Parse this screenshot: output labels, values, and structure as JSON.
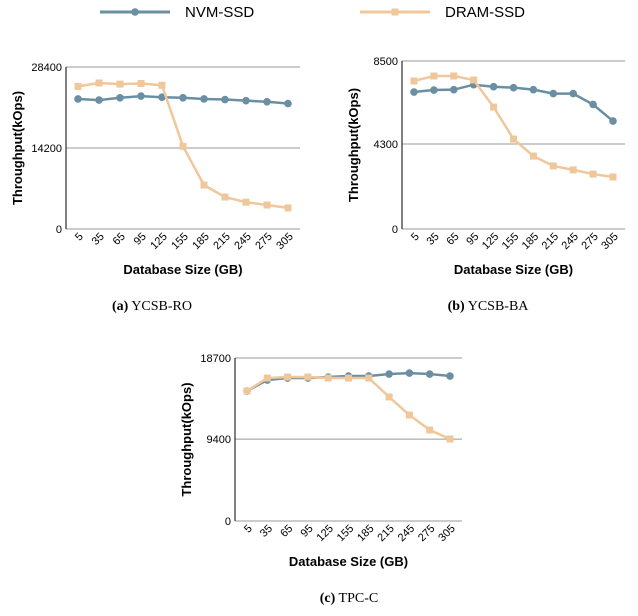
{
  "chart_data": [
    {
      "type": "line",
      "caption_label": "(a)",
      "caption": "YCSB-RO",
      "xlabel": "Database Size (GB)",
      "ylabel": "Throughput(kOps)",
      "categories": [
        "5",
        "35",
        "65",
        "95",
        "125",
        "155",
        "185",
        "215",
        "245",
        "275",
        "305"
      ],
      "ylim": [
        0,
        28400
      ],
      "yticks": [
        0,
        14200,
        28400
      ],
      "grid": true,
      "series": [
        {
          "name": "NVM-SSD",
          "color": "#6a8fa3",
          "marker": "circle",
          "values": [
            22800,
            22600,
            23000,
            23300,
            23100,
            23000,
            22800,
            22700,
            22500,
            22300,
            22000
          ]
        },
        {
          "name": "DRAM-SSD",
          "color": "#f0c79a",
          "marker": "square",
          "values": [
            25000,
            25600,
            25400,
            25500,
            25200,
            14500,
            7700,
            5600,
            4700,
            4200,
            3700
          ]
        }
      ]
    },
    {
      "type": "line",
      "caption_label": "(b)",
      "caption": "YCSB-BA",
      "xlabel": "Database Size (GB)",
      "ylabel": "Throughput(kOps)",
      "categories": [
        "5",
        "35",
        "65",
        "95",
        "125",
        "155",
        "185",
        "215",
        "245",
        "275",
        "305"
      ],
      "ylim": [
        0,
        8500
      ],
      "yticks": [
        0,
        4300,
        8500
      ],
      "grid": true,
      "series": [
        {
          "name": "NVM-SSD",
          "color": "#6a8fa3",
          "marker": "circle",
          "values": [
            6930,
            7030,
            7050,
            7300,
            7200,
            7150,
            7050,
            6850,
            6850,
            6300,
            5460
          ]
        },
        {
          "name": "DRAM-SSD",
          "color": "#f0c79a",
          "marker": "square",
          "values": [
            7490,
            7740,
            7740,
            7540,
            6170,
            4550,
            3690,
            3190,
            2990,
            2780,
            2630
          ]
        }
      ]
    },
    {
      "type": "line",
      "caption_label": "(c)",
      "caption": "TPC-C",
      "xlabel": "Database Size (GB)",
      "ylabel": "Throughput(kOps)",
      "categories": [
        "5",
        "35",
        "65",
        "95",
        "125",
        "155",
        "185",
        "215",
        "245",
        "275",
        "305"
      ],
      "ylim": [
        0,
        18700
      ],
      "yticks": [
        0,
        9400,
        18700
      ],
      "grid": true,
      "series": [
        {
          "name": "NVM-SSD",
          "color": "#6a8fa3",
          "marker": "circle",
          "values": [
            14910,
            16170,
            16400,
            16400,
            16520,
            16630,
            16630,
            16860,
            16970,
            16860,
            16630
          ]
        },
        {
          "name": "DRAM-SSD",
          "color": "#f0c79a",
          "marker": "square",
          "values": [
            14910,
            16400,
            16520,
            16520,
            16400,
            16400,
            16400,
            14230,
            12160,
            10440,
            9410
          ]
        }
      ]
    }
  ]
}
